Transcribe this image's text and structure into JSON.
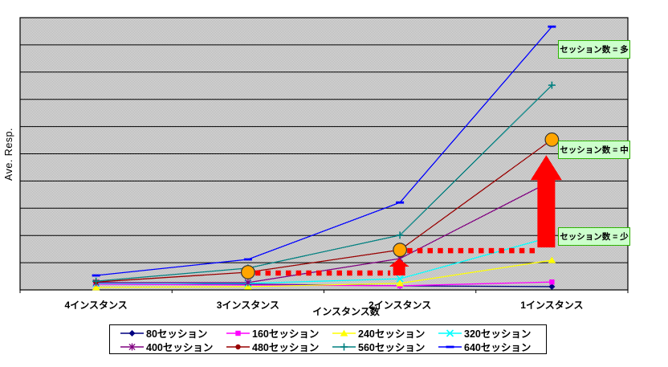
{
  "chart_data": {
    "type": "line",
    "title": "",
    "ylabel": "Ave. Resp.",
    "xlabel": "インスタンス数",
    "categories": [
      "4インスタンス",
      "3インスタンス",
      "2インスタンス",
      "1インスタンス"
    ],
    "ylim": [
      0,
      10
    ],
    "grid": "horizontal gridlines every 1 unit, black on gray dotted plot area",
    "legend_position": "bottom",
    "plot_bg_color": "#cdcdcd",
    "series": [
      {
        "name": "80セッション",
        "color": "#000080",
        "marker": "diamond",
        "values": [
          0.27,
          0.21,
          0.15,
          0.12
        ]
      },
      {
        "name": "160セッション",
        "color": "#ff00ff",
        "marker": "square",
        "values": [
          0.21,
          0.18,
          0.15,
          0.29
        ]
      },
      {
        "name": "240セッション",
        "color": "#ffff00",
        "marker": "triangle",
        "values": [
          0.09,
          0.12,
          0.24,
          1.09
        ]
      },
      {
        "name": "320セッション",
        "color": "#00ffff",
        "marker": "x",
        "values": [
          0.24,
          0.24,
          0.41,
          1.95
        ]
      },
      {
        "name": "400セッション",
        "color": "#800080",
        "marker": "asterisk",
        "values": [
          0.27,
          0.27,
          1.15,
          4.01
        ]
      },
      {
        "name": "480セッション",
        "color": "#990000",
        "marker": "circle",
        "values": [
          0.29,
          0.65,
          1.47,
          5.52
        ]
      },
      {
        "name": "560セッション",
        "color": "#008080",
        "marker": "plus",
        "values": [
          0.32,
          0.8,
          2.01,
          7.52
        ]
      },
      {
        "name": "640セッション",
        "color": "#0000ff",
        "marker": "dash",
        "values": [
          0.53,
          1.12,
          3.21,
          9.67
        ]
      }
    ],
    "annotations": {
      "highlight_color": "#ffa500",
      "arrow_color": "#ff0000",
      "label_bg": "#ccffcc",
      "label_border": "#2db200",
      "highlight_circles": [
        {
          "cat": 1,
          "value": 0.65
        },
        {
          "cat": 2,
          "value": 1.47
        },
        {
          "cat": 3,
          "value": 5.52
        }
      ],
      "dotted_lines": [
        {
          "x1_cat": 1,
          "x2_cat": 2,
          "value": 0.62
        },
        {
          "x1_cat": 2,
          "x2_cat": 3,
          "value": 1.44
        }
      ],
      "arrows": [
        {
          "cat": 2,
          "from": 0.53,
          "to": 1.15,
          "size": "small"
        },
        {
          "cat": 3,
          "from": 1.56,
          "to": 4.95,
          "size": "large"
        }
      ],
      "labels": [
        {
          "text": "セッション数 = 多",
          "value": 8.82
        },
        {
          "text": "セッション数 = 中",
          "value": 5.13
        },
        {
          "text": "セッション数 = 少",
          "value": 1.95
        }
      ]
    }
  }
}
